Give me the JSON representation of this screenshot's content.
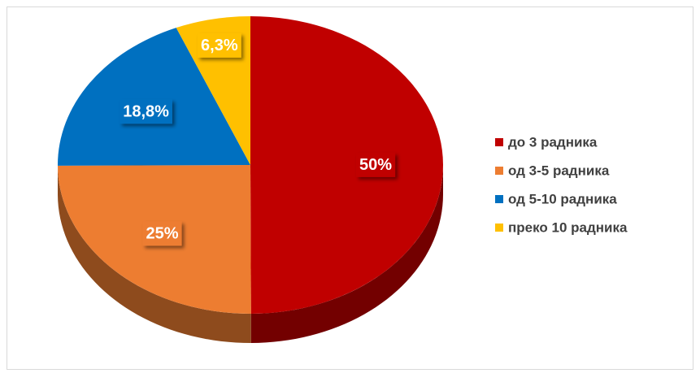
{
  "chart_data": {
    "type": "pie",
    "categories": [
      "до 3 радника",
      "од 3-5 радника",
      "од 5-10 радника",
      "преко 10 радника"
    ],
    "values": [
      50,
      25,
      18.8,
      6.3
    ],
    "value_labels": [
      "50%",
      "25%",
      "18,8%",
      "6,3%"
    ],
    "colors": [
      "#c00000",
      "#ed7d31",
      "#0070c0",
      "#ffc000"
    ],
    "legend": "right"
  }
}
